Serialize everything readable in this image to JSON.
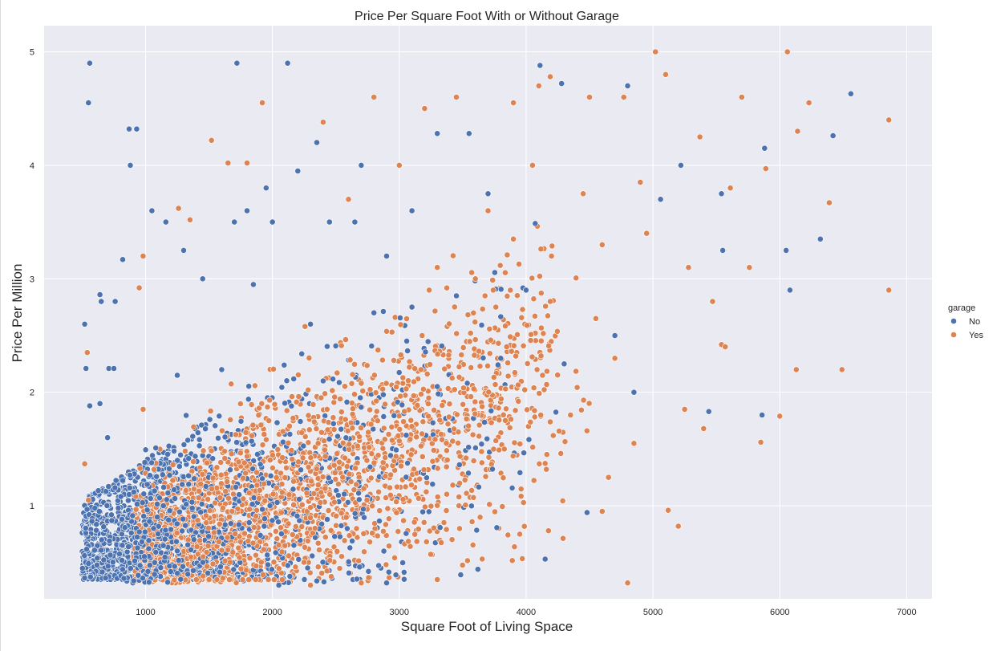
{
  "chart_data": {
    "type": "scatter",
    "title": "Price Per Square Foot With or Without Garage",
    "xlabel": "Square Foot of Living Space",
    "ylabel": "Price Per Million",
    "xlim": [
      200,
      7200
    ],
    "ylim": [
      0.18,
      5.23
    ],
    "xticks": [
      1000,
      2000,
      3000,
      4000,
      5000,
      6000,
      7000
    ],
    "yticks": [
      1,
      2,
      3,
      4,
      5
    ],
    "grid": true,
    "background": "#eaeaf2",
    "legend": {
      "title": "garage",
      "placement": "right"
    },
    "series": [
      {
        "name": "No",
        "color": "#4c72b0",
        "points": [
          [
            560,
            4.9
          ],
          [
            550,
            4.55
          ],
          [
            870,
            4.32
          ],
          [
            930,
            4.32
          ],
          [
            880,
            4.0
          ],
          [
            1720,
            4.9
          ],
          [
            2120,
            4.9
          ],
          [
            4110,
            4.88
          ],
          [
            4280,
            4.72
          ],
          [
            4800,
            4.7
          ],
          [
            6560,
            4.63
          ],
          [
            6420,
            4.26
          ],
          [
            5880,
            4.15
          ],
          [
            5220,
            4.0
          ],
          [
            1050,
            3.6
          ],
          [
            1160,
            3.5
          ],
          [
            820,
            3.17
          ],
          [
            640,
            2.86
          ],
          [
            650,
            2.8
          ],
          [
            760,
            2.8
          ],
          [
            520,
            2.6
          ],
          [
            530,
            2.21
          ],
          [
            710,
            2.21
          ],
          [
            750,
            2.21
          ],
          [
            640,
            1.9
          ],
          [
            560,
            1.88
          ],
          [
            700,
            1.6
          ],
          [
            1700,
            3.5
          ],
          [
            2450,
            3.5
          ],
          [
            2200,
            3.95
          ],
          [
            2000,
            3.5
          ],
          [
            2700,
            4.0
          ],
          [
            3300,
            4.28
          ],
          [
            3550,
            4.28
          ],
          [
            5550,
            3.25
          ],
          [
            6050,
            3.25
          ],
          [
            6320,
            3.35
          ],
          [
            5540,
            3.75
          ],
          [
            5860,
            1.8
          ],
          [
            6080,
            2.9
          ],
          [
            5440,
            1.83
          ],
          [
            5060,
            3.7
          ],
          [
            4150,
            0.53
          ],
          [
            4480,
            0.94
          ],
          [
            3620,
            0.44
          ],
          [
            2900,
            0.32
          ],
          [
            2050,
            0.3
          ],
          [
            3700,
            3.75
          ],
          [
            2650,
            3.5
          ],
          [
            1300,
            3.25
          ],
          [
            1450,
            3.0
          ],
          [
            1850,
            2.95
          ],
          [
            2300,
            2.6
          ],
          [
            2800,
            2.7
          ],
          [
            3100,
            2.75
          ],
          [
            3450,
            2.85
          ],
          [
            4000,
            2.9
          ],
          [
            4300,
            2.25
          ],
          [
            4700,
            2.5
          ],
          [
            4850,
            2.0
          ],
          [
            1250,
            2.15
          ],
          [
            1600,
            2.2
          ],
          [
            2400,
            2.1
          ],
          [
            3300,
            2.05
          ],
          [
            3800,
            2.3
          ],
          [
            2900,
            3.2
          ],
          [
            3100,
            3.6
          ],
          [
            1950,
            3.8
          ],
          [
            1800,
            3.6
          ],
          [
            2350,
            4.2
          ]
        ]
      },
      {
        "name": "Yes",
        "color": "#dd8452",
        "points": [
          [
            5020,
            5.0
          ],
          [
            6060,
            5.0
          ],
          [
            5100,
            4.8
          ],
          [
            4190,
            4.78
          ],
          [
            4100,
            4.7
          ],
          [
            4500,
            4.6
          ],
          [
            4770,
            4.6
          ],
          [
            6860,
            4.4
          ],
          [
            5700,
            4.6
          ],
          [
            6230,
            4.55
          ],
          [
            6140,
            4.3
          ],
          [
            5370,
            4.25
          ],
          [
            5890,
            3.97
          ],
          [
            1920,
            4.55
          ],
          [
            1520,
            4.22
          ],
          [
            1650,
            4.02
          ],
          [
            2800,
            4.6
          ],
          [
            3200,
            4.5
          ],
          [
            3450,
            4.6
          ],
          [
            3900,
            4.55
          ],
          [
            2400,
            4.38
          ],
          [
            6860,
            2.9
          ],
          [
            6490,
            2.2
          ],
          [
            6390,
            3.67
          ],
          [
            6130,
            2.2
          ],
          [
            6000,
            1.79
          ],
          [
            5850,
            1.56
          ],
          [
            5760,
            3.1
          ],
          [
            5540,
            2.42
          ],
          [
            5570,
            2.4
          ],
          [
            5200,
            0.82
          ],
          [
            5120,
            0.96
          ],
          [
            4800,
            0.32
          ],
          [
            4600,
            0.95
          ],
          [
            5250,
            1.85
          ],
          [
            5400,
            1.68
          ],
          [
            5280,
            3.1
          ],
          [
            5470,
            2.8
          ],
          [
            5610,
            3.8
          ],
          [
            980,
            3.2
          ],
          [
            950,
            2.92
          ],
          [
            1350,
            3.52
          ],
          [
            1260,
            3.62
          ],
          [
            540,
            2.35
          ],
          [
            520,
            1.37
          ],
          [
            550,
            1.05
          ],
          [
            980,
            1.85
          ],
          [
            1800,
            4.02
          ],
          [
            2600,
            3.7
          ],
          [
            3000,
            4.0
          ],
          [
            3700,
            3.6
          ],
          [
            4050,
            4.0
          ],
          [
            4450,
            3.75
          ],
          [
            4900,
            3.85
          ],
          [
            3300,
            3.1
          ],
          [
            3600,
            3.0
          ],
          [
            3900,
            3.35
          ],
          [
            4200,
            3.2
          ],
          [
            4600,
            3.3
          ],
          [
            4950,
            3.4
          ],
          [
            4550,
            2.65
          ],
          [
            4700,
            2.3
          ],
          [
            4350,
            1.8
          ],
          [
            4650,
            1.25
          ],
          [
            4850,
            1.55
          ],
          [
            3950,
            0.75
          ],
          [
            3300,
            0.35
          ],
          [
            2700,
            0.32
          ],
          [
            2300,
            0.3
          ],
          [
            1500,
            0.35
          ]
        ]
      }
    ]
  }
}
